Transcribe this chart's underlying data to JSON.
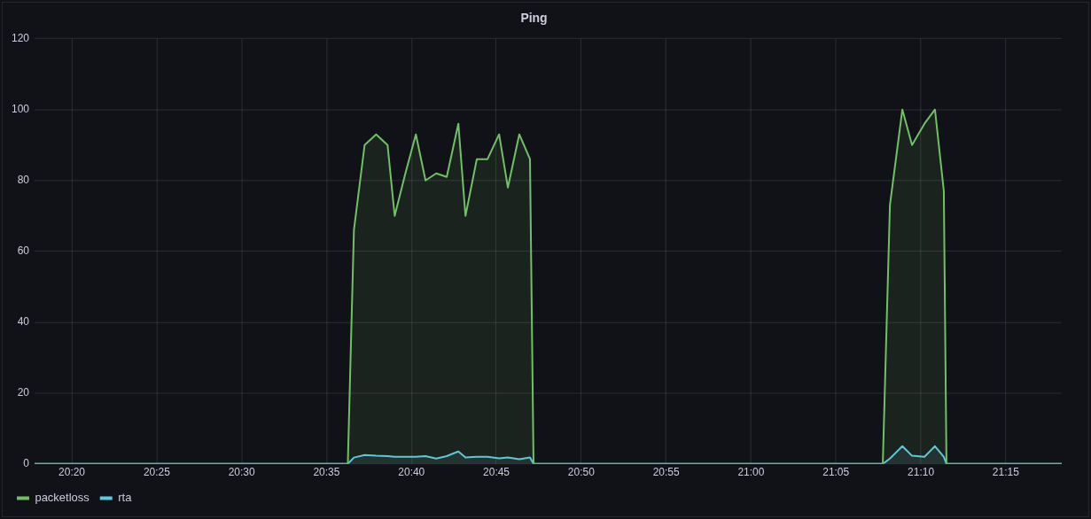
{
  "chart_data": {
    "type": "area",
    "title": "Ping",
    "x": [
      20.2967,
      20.6042,
      20.6102,
      20.6207,
      20.632,
      20.6432,
      20.6502,
      20.6607,
      20.671,
      20.6805,
      20.691,
      20.7013,
      20.7127,
      20.7197,
      20.7308,
      20.7413,
      20.7527,
      20.7613,
      20.7725,
      20.783,
      20.7865,
      21.1293,
      21.1363,
      21.1485,
      21.158,
      21.1702,
      21.1805,
      21.1892,
      21.1918,
      21.305
    ],
    "series": [
      {
        "name": "packetloss",
        "color": "#73bf69",
        "values": [
          0,
          0,
          66,
          90,
          93,
          90,
          70,
          82,
          93,
          80,
          82,
          81,
          96,
          70,
          86,
          86,
          93,
          78,
          93,
          86,
          0,
          0,
          73,
          100,
          90,
          96,
          100,
          77,
          0,
          0
        ]
      },
      {
        "name": "rta",
        "color": "#5fc9e0",
        "values": [
          0,
          0,
          1.8,
          2.5,
          2.3,
          2.2,
          2,
          2,
          2,
          2.2,
          1.5,
          2.2,
          3.5,
          1.8,
          2,
          2,
          1.6,
          1.8,
          1.3,
          1.8,
          0,
          0,
          1.5,
          5,
          2.3,
          2,
          5,
          2,
          0,
          0
        ]
      }
    ],
    "xlim": [
      20.2967,
      21.305
    ],
    "xticks": [
      {
        "value": 20.3333,
        "label": "20:20"
      },
      {
        "value": 20.4167,
        "label": "20:25"
      },
      {
        "value": 20.5,
        "label": "20:30"
      },
      {
        "value": 20.5833,
        "label": "20:35"
      },
      {
        "value": 20.6667,
        "label": "20:40"
      },
      {
        "value": 20.75,
        "label": "20:45"
      },
      {
        "value": 20.8333,
        "label": "20:50"
      },
      {
        "value": 20.9167,
        "label": "20:55"
      },
      {
        "value": 21.0,
        "label": "21:00"
      },
      {
        "value": 21.0833,
        "label": "21:05"
      },
      {
        "value": 21.1667,
        "label": "21:10"
      },
      {
        "value": 21.25,
        "label": "21:15"
      }
    ],
    "ylim": [
      0,
      120
    ],
    "yticks": [
      0,
      20,
      40,
      60,
      80,
      100,
      120
    ],
    "grid": true,
    "legend": "bottom left",
    "marker": "none",
    "line_style": "solid"
  }
}
